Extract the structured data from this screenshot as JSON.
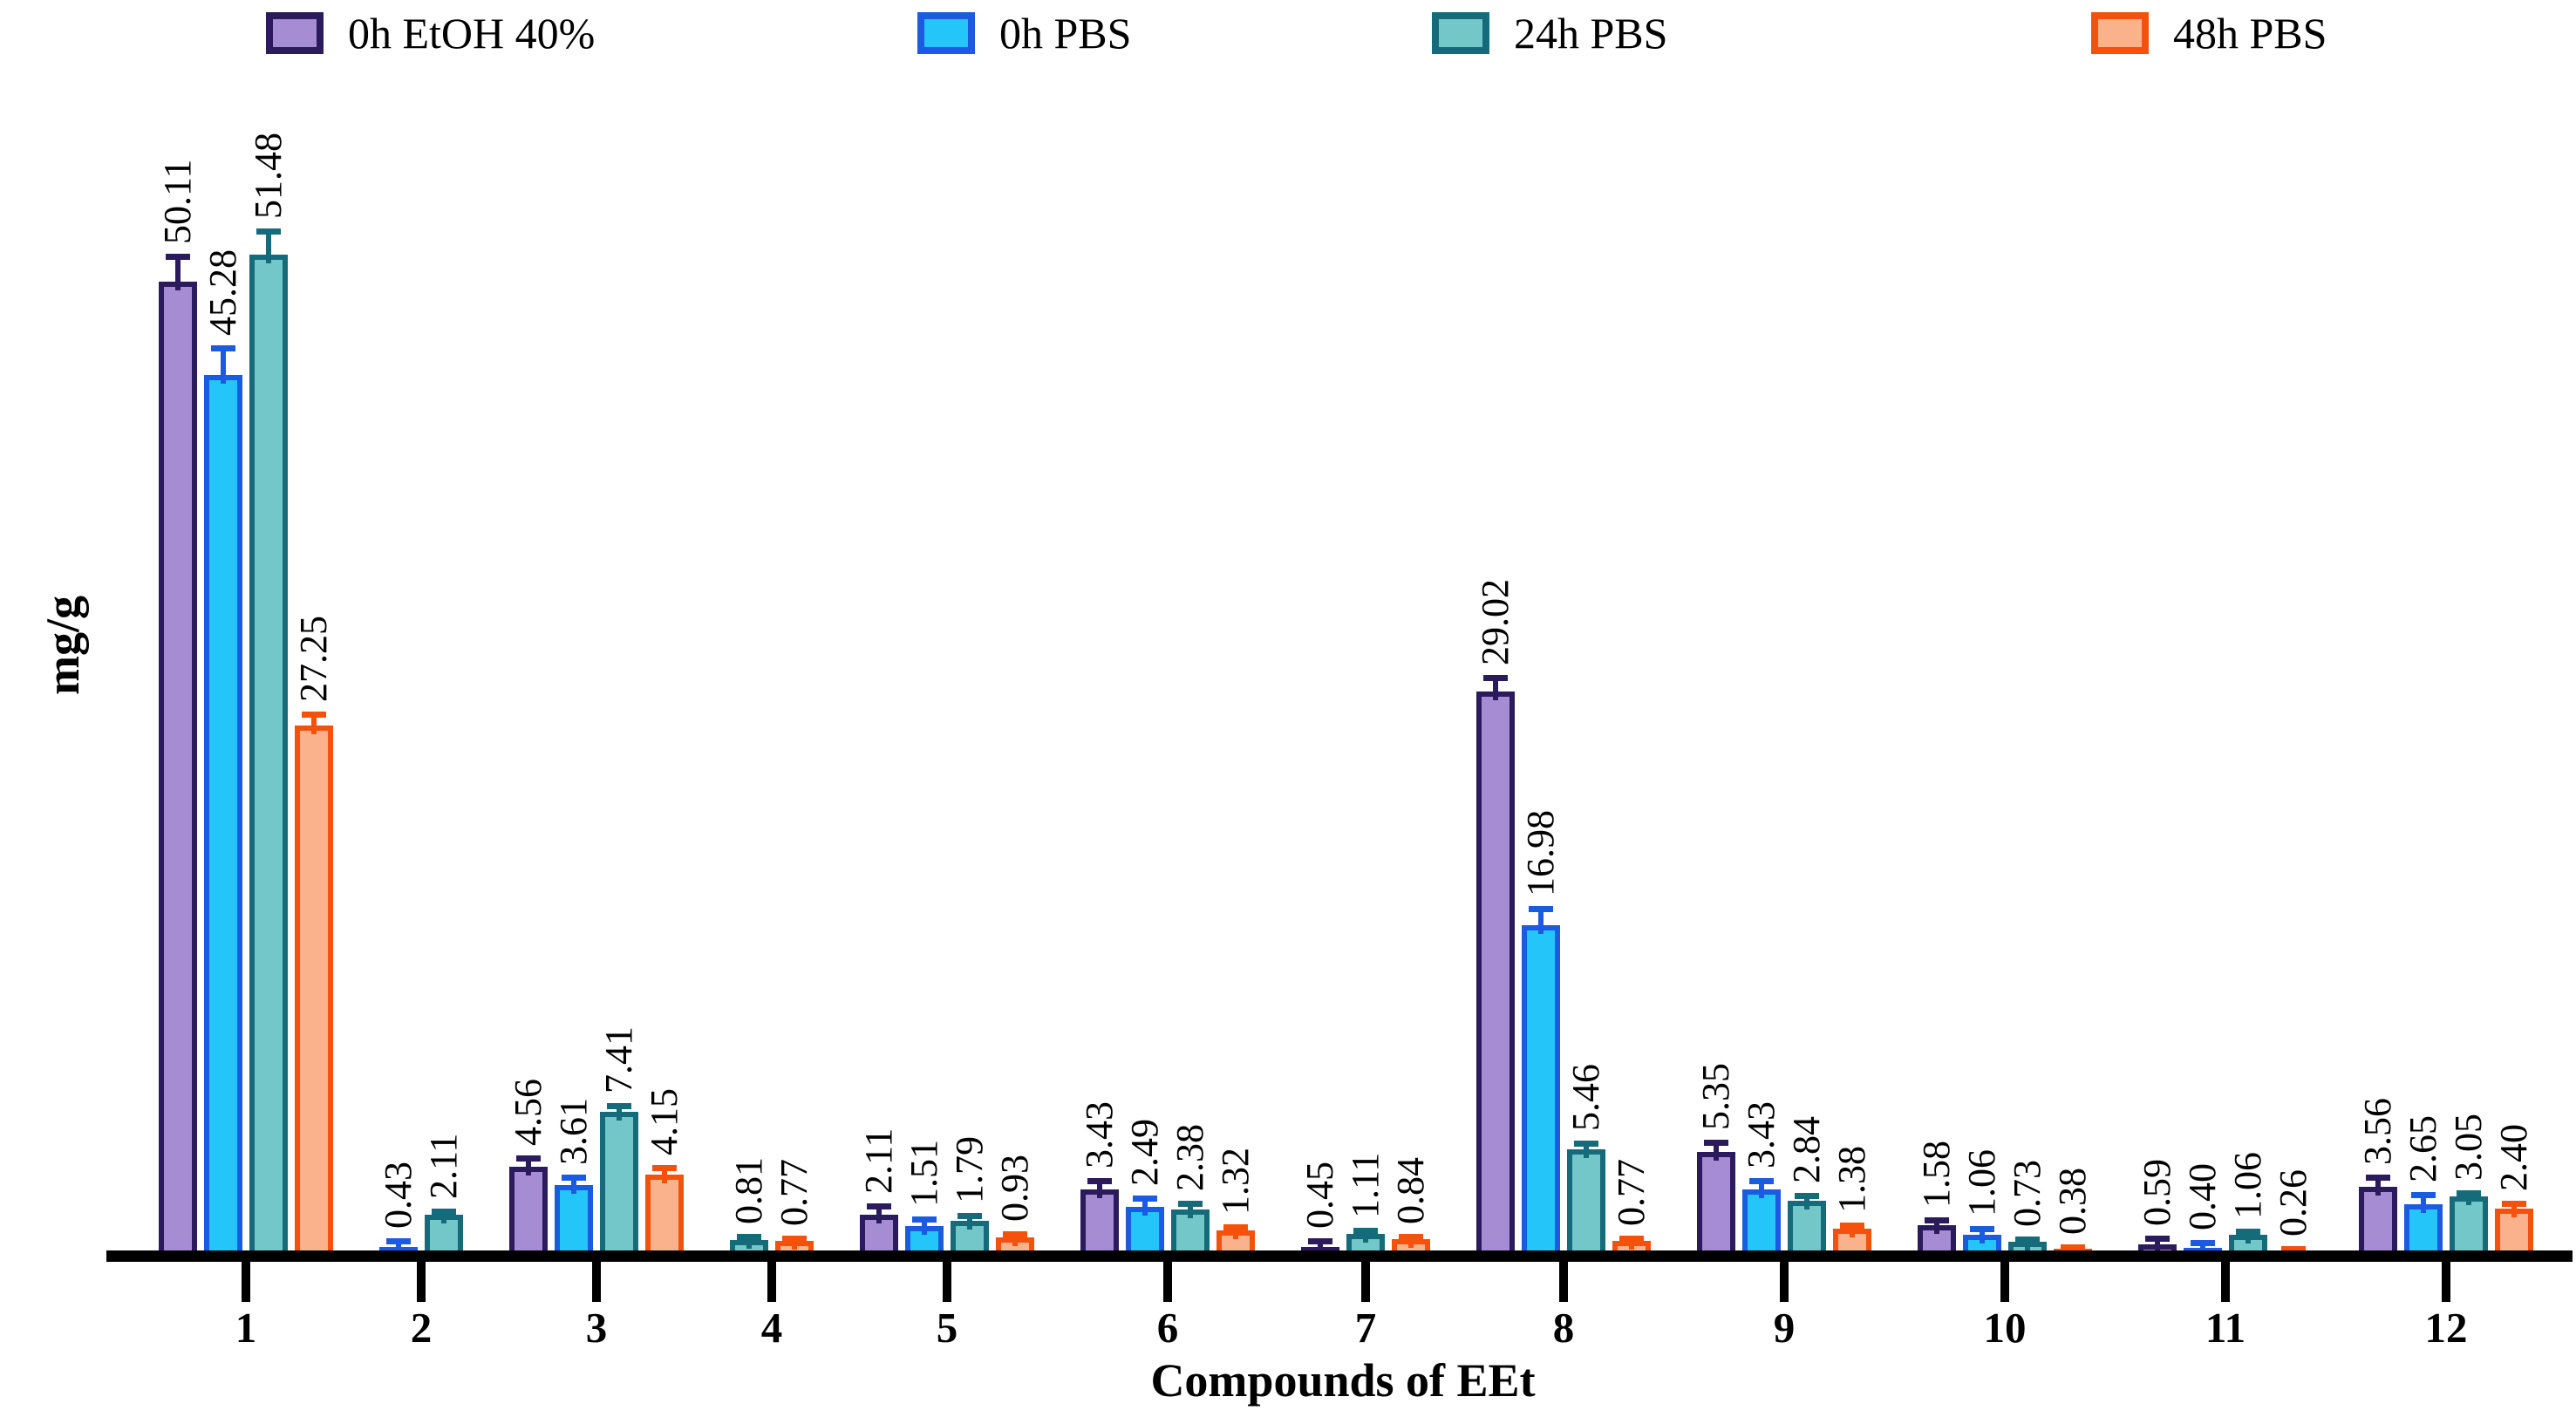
{
  "chart_data": {
    "type": "bar",
    "title": "",
    "xlabel": "Compounds of EEt",
    "ylabel": "mg/g",
    "categories": [
      "1",
      "2",
      "3",
      "4",
      "5",
      "6",
      "7",
      "8",
      "9",
      "10",
      "11",
      "12"
    ],
    "series": [
      {
        "name": "0h EtOH 40%",
        "fill": "#a58cd3",
        "stroke": "#2b1a5c",
        "values": [
          50.11,
          null,
          4.56,
          null,
          2.11,
          3.43,
          0.45,
          29.02,
          5.35,
          1.58,
          0.59,
          3.56
        ],
        "errors": [
          1.3,
          null,
          0.45,
          null,
          0.45,
          0.45,
          0.3,
          0.7,
          0.5,
          0.25,
          0.3,
          0.5
        ]
      },
      {
        "name": "0h PBS",
        "fill": "#24c5f8",
        "stroke": "#1b5be1",
        "values": [
          45.28,
          0.43,
          3.61,
          null,
          1.51,
          2.49,
          null,
          16.98,
          3.43,
          1.06,
          0.4,
          2.65
        ],
        "errors": [
          1.4,
          0.3,
          0.4,
          null,
          0.35,
          0.45,
          null,
          0.85,
          0.45,
          0.3,
          0.25,
          0.5
        ]
      },
      {
        "name": "24h PBS",
        "fill": "#74c7c9",
        "stroke": "#156b7a",
        "values": [
          51.48,
          2.11,
          7.41,
          0.81,
          1.79,
          2.38,
          1.11,
          5.46,
          2.84,
          0.73,
          1.06,
          3.05
        ],
        "errors": [
          1.2,
          0.2,
          0.3,
          0.2,
          0.25,
          0.3,
          0.2,
          0.3,
          0.25,
          0.15,
          0.2,
          0.2
        ]
      },
      {
        "name": "48h PBS",
        "fill": "#fab28d",
        "stroke": "#f4510c",
        "values": [
          27.25,
          null,
          4.15,
          0.77,
          0.93,
          1.32,
          0.84,
          0.77,
          1.38,
          0.38,
          0.26,
          2.4
        ],
        "errors": [
          0.6,
          null,
          0.35,
          0.15,
          0.2,
          0.2,
          0.15,
          0.12,
          0.2,
          0.1,
          0.08,
          0.25
        ]
      }
    ],
    "ylim": [
      0,
      60
    ],
    "grid": false,
    "legend_position": "top",
    "value_labels": "rotated-90-above-error-bars",
    "value_label_format": "2-decimals"
  }
}
